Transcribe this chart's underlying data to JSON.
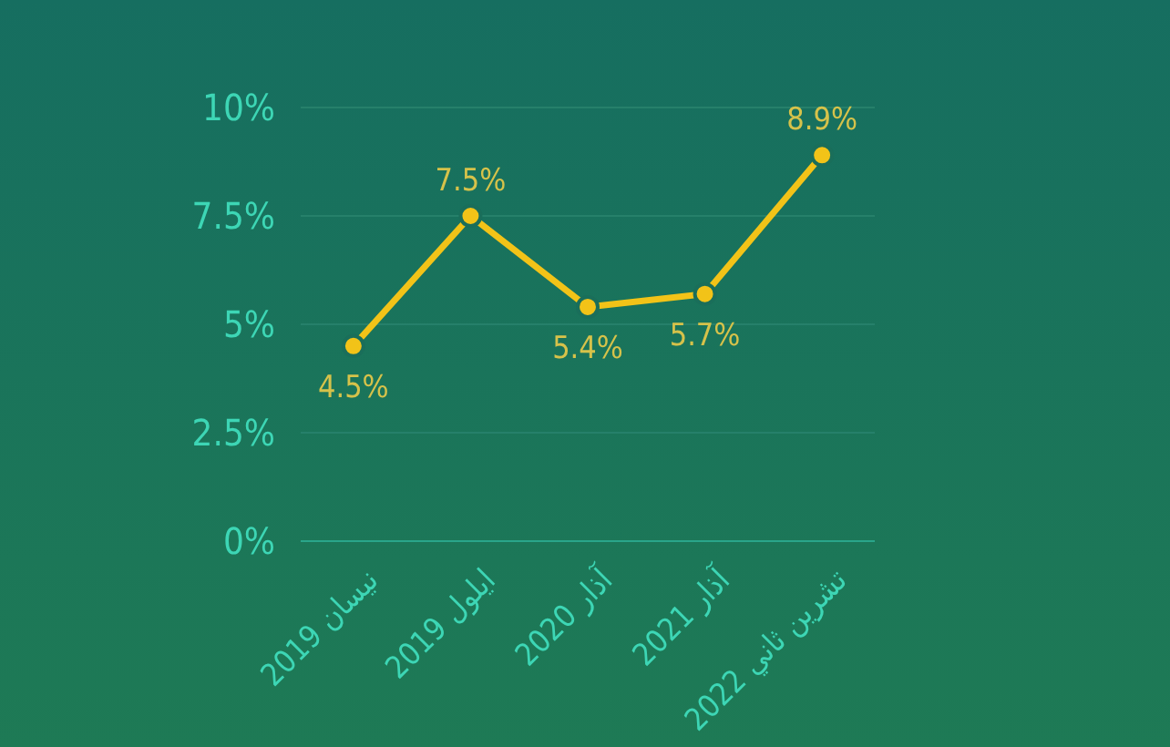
{
  "chart_data": {
    "type": "line",
    "categories": [
      "نيسان 2019",
      "ايلول 2019",
      "آذار 2020",
      "آذار 2021",
      "تشرين ثاني 2022"
    ],
    "series": [
      {
        "color": "#f2c318",
        "values": [
          4.5,
          7.5,
          5.4,
          5.7,
          8.9
        ],
        "value_labels": [
          "4.5%",
          "7.5%",
          "5.4%",
          "5.7%",
          "8.9%"
        ]
      }
    ],
    "ylim": [
      0,
      10
    ],
    "yticks": [
      {
        "value": 0,
        "label": "0%"
      },
      {
        "value": 2.5,
        "label": "2.5%"
      },
      {
        "value": 5,
        "label": "5%"
      },
      {
        "value": 7.5,
        "label": "7.5%"
      },
      {
        "value": 10,
        "label": "10%"
      }
    ],
    "grid": "y",
    "marker": "circle",
    "line_style": "solid"
  }
}
